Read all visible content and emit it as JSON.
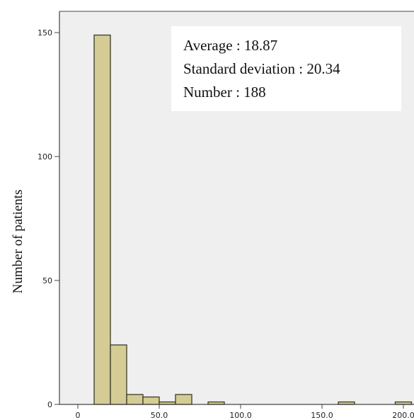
{
  "chart_data": {
    "type": "bar",
    "subtype": "histogram",
    "ylabel": "Number of patients",
    "xlabel": "",
    "xlim": [
      0,
      200
    ],
    "ylim": [
      0,
      155
    ],
    "bin_width": 10,
    "x_ticks": [
      0,
      50,
      100,
      150,
      200
    ],
    "x_tick_labels": [
      "0",
      "50.0",
      "100.0",
      "150.0",
      "200.0"
    ],
    "y_ticks": [
      0,
      50,
      100,
      150
    ],
    "y_tick_labels": [
      "0",
      "50",
      "100",
      "150"
    ],
    "bins": [
      {
        "start": 10,
        "end": 20,
        "count": 149
      },
      {
        "start": 20,
        "end": 30,
        "count": 24
      },
      {
        "start": 30,
        "end": 40,
        "count": 4
      },
      {
        "start": 40,
        "end": 50,
        "count": 3
      },
      {
        "start": 50,
        "end": 60,
        "count": 1
      },
      {
        "start": 60,
        "end": 70,
        "count": 4
      },
      {
        "start": 80,
        "end": 90,
        "count": 1
      },
      {
        "start": 160,
        "end": 170,
        "count": 1
      },
      {
        "start": 195,
        "end": 205,
        "count": 1
      }
    ],
    "annotations": [
      "Average : 18.87",
      "Standard deviation : 20.34",
      "Number : 188"
    ],
    "colors": {
      "bar_fill": "#d4cc94",
      "bar_stroke": "#3a3a28",
      "plot_background": "#efefef",
      "axis": "#444444"
    },
    "grid": false
  }
}
